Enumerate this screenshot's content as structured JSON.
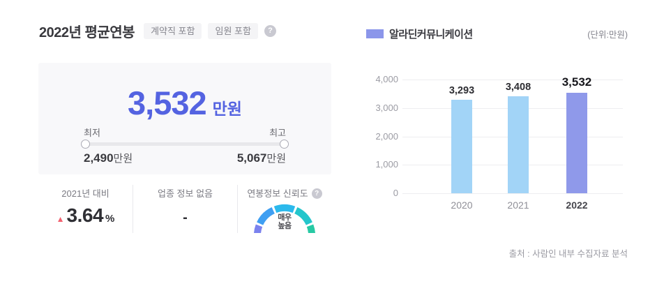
{
  "left": {
    "title": "2022년 평균연봉",
    "badges": [
      "계약직 포함",
      "임원 포함"
    ],
    "help_icon": "?",
    "card": {
      "value": "3,532",
      "unit": "만원",
      "min_label": "최저",
      "max_label": "최고",
      "min_value": "2,490",
      "min_unit": "만원",
      "max_value": "5,067",
      "max_unit": "만원"
    },
    "stats": [
      {
        "label": "2021년 대비",
        "arrow": "▲",
        "value": "3.64",
        "suffix": "%"
      },
      {
        "label": "업종 정보 없음",
        "value": "-"
      },
      {
        "label": "연봉정보 신뢰도",
        "help_icon": "?",
        "gauge_text_line1": "매우",
        "gauge_text_line2": "높음"
      }
    ]
  },
  "chart": {
    "legend_label": "알라딘커뮤니케이션",
    "unit_note": "(단위:만원)"
  },
  "chart_data": {
    "type": "bar",
    "title": "",
    "xlabel": "",
    "ylabel": "",
    "categories": [
      "2020",
      "2021",
      "2022"
    ],
    "values": [
      3293,
      3408,
      3532
    ],
    "value_labels": [
      "3,293",
      "3,408",
      "3,532"
    ],
    "series": [
      {
        "name": "알라딘커뮤니케이션",
        "values": [
          3293,
          3408,
          3532
        ]
      }
    ],
    "ylim": [
      0,
      4000
    ],
    "yticks": [
      0,
      1000,
      2000,
      3000,
      4000
    ],
    "ytick_labels": [
      "0",
      "1,000",
      "2,000",
      "3,000",
      "4,000"
    ],
    "bar_colors": [
      "#a2d4f7",
      "#a2d4f7",
      "#8f99ea"
    ],
    "highlight_index": 2,
    "grid": true,
    "legend_position": "top-left",
    "unit_note": "(단위:만원)"
  },
  "footer": {
    "source": "출처 : 사람인 내부 수집자료 분석"
  },
  "colors": {
    "accent_blue": "#5463e1",
    "bar_default": "#a2d4f7",
    "bar_highlight": "#8f99ea",
    "legend_swatch": "#8b96ea",
    "up_arrow_red": "#f2616f",
    "card_background": "#f8f8fa",
    "gauge_segments": [
      "#7b82ee",
      "#3f9ff2",
      "#2cb9ec",
      "#24c6cc",
      "#27c9a4"
    ]
  }
}
